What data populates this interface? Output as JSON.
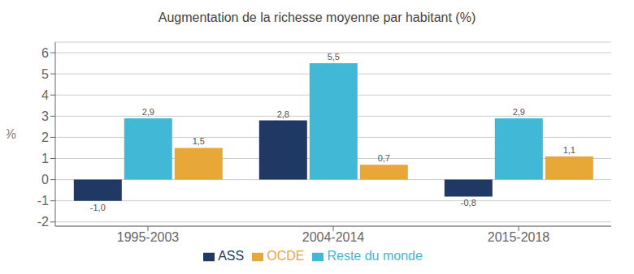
{
  "chart_data": {
    "type": "bar",
    "title": "Augmentation de la richesse moyenne par habitant (%)",
    "categories": [
      "1995-2003",
      "2004-2014",
      "2015-2018"
    ],
    "series": [
      {
        "name": "ASS",
        "color": "#1f3864",
        "values": [
          -1.0,
          2.8,
          -0.8
        ],
        "value_labels": [
          "-1,0",
          "2,8",
          "-0,8"
        ]
      },
      {
        "name": "Reste du monde",
        "color": "#41b8d5",
        "values": [
          2.9,
          5.5,
          2.9
        ],
        "value_labels": [
          "2,9",
          "5,5",
          "2,9"
        ]
      },
      {
        "name": "OCDE",
        "color": "#e8a838",
        "values": [
          1.5,
          0.7,
          1.1
        ],
        "value_labels": [
          "1,5",
          "0,7",
          "1,1"
        ]
      }
    ],
    "ylabel": "%",
    "ylim": [
      -2.2,
      6.5
    ],
    "yticks": [
      -2,
      -1,
      0,
      1,
      2,
      3,
      4,
      5,
      6
    ],
    "grid": true,
    "data_labels": true
  }
}
